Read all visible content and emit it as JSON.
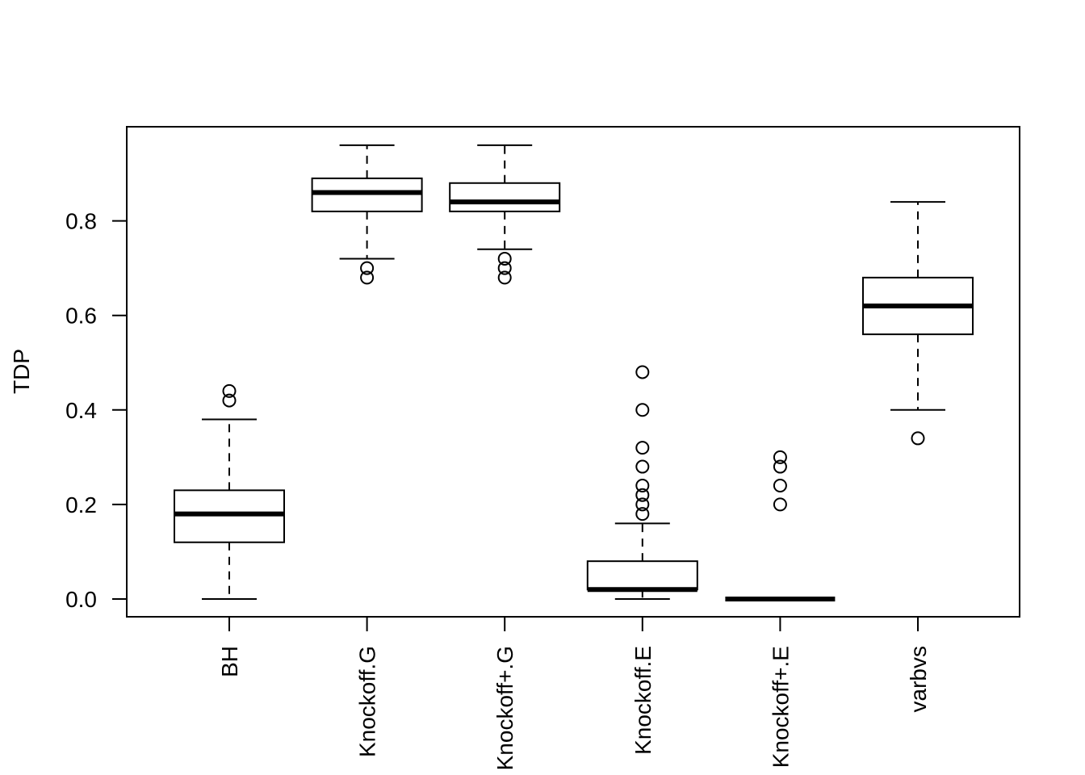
{
  "chart_data": {
    "type": "boxplot",
    "title": "",
    "xlabel": "",
    "ylabel": "TDP",
    "ylim": [
      -0.038,
      0.998
    ],
    "yticks": [
      0.0,
      0.2,
      0.4,
      0.6,
      0.8
    ],
    "ytick_labels": [
      "0.0",
      "0.2",
      "0.4",
      "0.6",
      "0.8"
    ],
    "grid": false,
    "categories": [
      "BH",
      "Knockoff.G",
      "Knockoff+.G",
      "Knockoff.E",
      "Knockoff+.E",
      "varbvs"
    ],
    "boxes": [
      {
        "name": "BH",
        "whisker_low": 0.0,
        "q1": 0.12,
        "median": 0.18,
        "q3": 0.23,
        "whisker_high": 0.38,
        "outliers": [
          0.42,
          0.44
        ]
      },
      {
        "name": "Knockoff.G",
        "whisker_low": 0.72,
        "q1": 0.82,
        "median": 0.86,
        "q3": 0.89,
        "whisker_high": 0.96,
        "outliers": [
          0.68,
          0.7
        ]
      },
      {
        "name": "Knockoff+.G",
        "whisker_low": 0.74,
        "q1": 0.82,
        "median": 0.84,
        "q3": 0.88,
        "whisker_high": 0.96,
        "outliers": [
          0.68,
          0.7,
          0.72
        ]
      },
      {
        "name": "Knockoff.E",
        "whisker_low": 0.0,
        "q1": 0.02,
        "median": 0.02,
        "q3": 0.08,
        "whisker_high": 0.16,
        "outliers": [
          0.18,
          0.2,
          0.22,
          0.24,
          0.28,
          0.32,
          0.4,
          0.48
        ]
      },
      {
        "name": "Knockoff+.E",
        "whisker_low": 0.0,
        "q1": 0.0,
        "median": 0.0,
        "q3": 0.0,
        "whisker_high": 0.0,
        "outliers": [
          0.2,
          0.24,
          0.28,
          0.3
        ]
      },
      {
        "name": "varbvs",
        "whisker_low": 0.4,
        "q1": 0.56,
        "median": 0.62,
        "q3": 0.68,
        "whisker_high": 0.84,
        "outliers": [
          0.34
        ]
      }
    ]
  }
}
